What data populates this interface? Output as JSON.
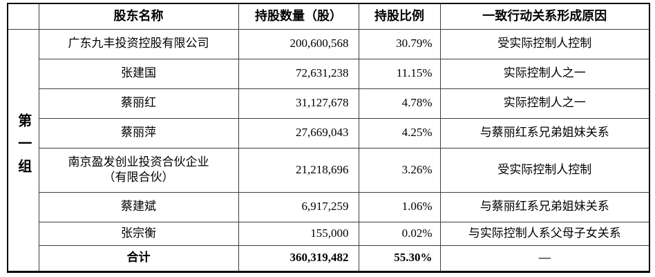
{
  "table": {
    "group_label": "第一组",
    "headers": {
      "group": "",
      "name": "股东名称",
      "shares": "持股数量（股）",
      "ratio": "持股比例",
      "reason": "一致行动关系形成原因"
    },
    "rows": [
      {
        "name": "广东九丰投资控股有限公司",
        "shares": "200,600,568",
        "ratio": "30.79%",
        "reason": "受实际控制人控制"
      },
      {
        "name": "张建国",
        "shares": "72,631,238",
        "ratio": "11.15%",
        "reason": "实际控制人之一"
      },
      {
        "name": "蔡丽红",
        "shares": "31,127,678",
        "ratio": "4.78%",
        "reason": "实际控制人之一"
      },
      {
        "name": "蔡丽萍",
        "shares": "27,669,043",
        "ratio": "4.25%",
        "reason": "与蔡丽红系兄弟姐妹关系"
      },
      {
        "name": "南京盈发创业投资合伙企业\n（有限合伙）",
        "shares": "21,218,696",
        "ratio": "3.26%",
        "reason": "受实际控制人控制"
      },
      {
        "name": "蔡建斌",
        "shares": "6,917,259",
        "ratio": "1.06%",
        "reason": "与蔡丽红系兄弟姐妹关系"
      },
      {
        "name": "张宗衡",
        "shares": "155,000",
        "ratio": "0.02%",
        "reason": "与实际控制人系父母子女关系"
      }
    ],
    "total_row": {
      "name": "合计",
      "shares": "360,319,482",
      "ratio": "55.30%",
      "reason": "—"
    },
    "colors": {
      "outer_border": "#000000",
      "inner_border": "#3d3d3d",
      "text": "#000000",
      "background": "#ffffff"
    }
  }
}
